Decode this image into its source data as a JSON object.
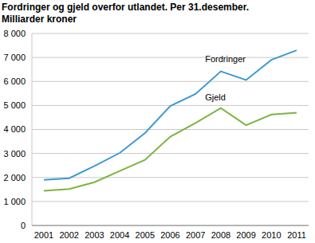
{
  "chart_data": {
    "type": "line",
    "title": "Fordringer og gjeld overfor utlandet. Per 31.desember.",
    "subtitle": "Milliarder kroner",
    "categories": [
      "2001",
      "2002",
      "2003",
      "2004",
      "2005",
      "2006",
      "2007",
      "2008",
      "2009",
      "2010",
      "2011"
    ],
    "series": [
      {
        "name": "Fordringer",
        "color": "#3d9ad1",
        "values": [
          1900,
          1970,
          2480,
          3020,
          3850,
          4980,
          5480,
          6420,
          6060,
          6900,
          7300
        ]
      },
      {
        "name": "Gjeld",
        "color": "#7cb442",
        "values": [
          1440,
          1520,
          1800,
          2270,
          2730,
          3700,
          4270,
          4890,
          4180,
          4620,
          4700
        ]
      }
    ],
    "ylim": [
      0,
      8000
    ],
    "yticks": [
      0,
      {
        "value": 1000,
        "label": "1 000"
      },
      {
        "value": 2000,
        "label": "2 000"
      },
      {
        "value": 3000,
        "label": "3 000"
      },
      {
        "value": 4000,
        "label": "4 000"
      },
      {
        "value": 5000,
        "label": "5 000"
      },
      {
        "value": 6000,
        "label": "6 000"
      },
      {
        "value": 7000,
        "label": "7 000"
      },
      {
        "value": 8000,
        "label": "8 000"
      }
    ],
    "grid": true
  }
}
